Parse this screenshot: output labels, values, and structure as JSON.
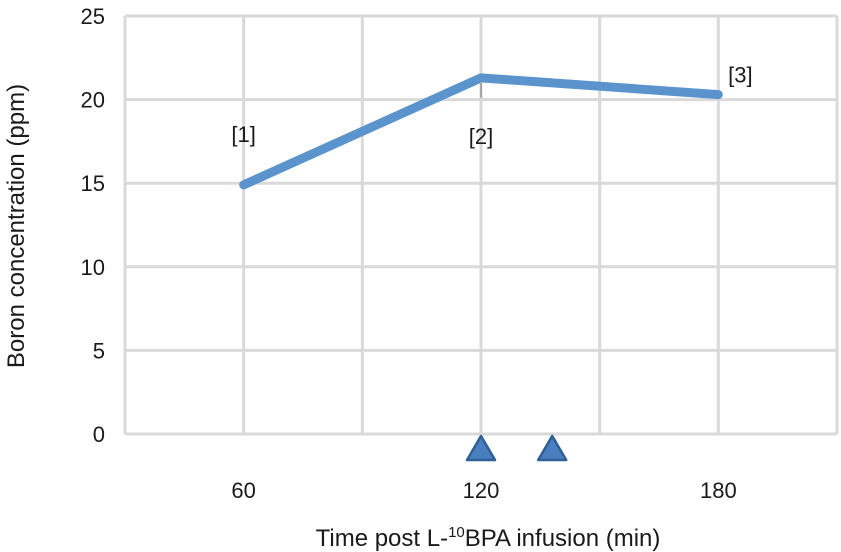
{
  "chart_data": {
    "type": "line",
    "xlabel_parts": {
      "pre": "Time post L-",
      "sup": "10",
      "post": "BPA infusion (min)"
    },
    "ylabel": "Boron concentration (ppm)",
    "y_ticks": [
      0,
      5,
      10,
      15,
      20,
      25
    ],
    "ylim": [
      0,
      25
    ],
    "x_ticks": [
      60,
      120,
      180
    ],
    "xlim": [
      30,
      210
    ],
    "grid": true,
    "series": [
      {
        "x": [
          60,
          120,
          180
        ],
        "values": [
          14.9,
          21.3,
          20.3
        ],
        "color": "#5b93cd"
      }
    ],
    "point_labels": [
      "[1]",
      "[2]",
      "[3]"
    ],
    "markers": {
      "shape": "triangle",
      "x": [
        120,
        138
      ],
      "color": "#4a7fbf"
    }
  }
}
